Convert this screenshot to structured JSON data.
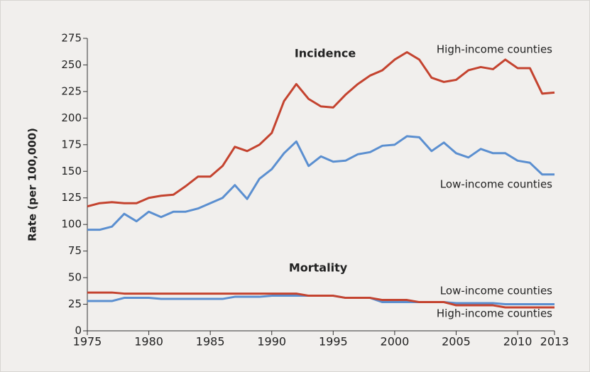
{
  "chart_data": {
    "type": "line",
    "ylabel": "Rate (per 100,000)",
    "x": [
      1975,
      1976,
      1977,
      1978,
      1979,
      1980,
      1981,
      1982,
      1983,
      1984,
      1985,
      1986,
      1987,
      1988,
      1989,
      1990,
      1991,
      1992,
      1993,
      1994,
      1995,
      1996,
      1997,
      1998,
      1999,
      2000,
      2001,
      2002,
      2003,
      2004,
      2005,
      2006,
      2007,
      2008,
      2009,
      2010,
      2011,
      2012,
      2013
    ],
    "xlim": [
      1975,
      2013
    ],
    "xticks": [
      1975,
      1980,
      1985,
      1990,
      1995,
      2000,
      2005,
      2010,
      2013
    ],
    "ylim": [
      0,
      275
    ],
    "yticks": [
      0,
      25,
      50,
      75,
      100,
      125,
      150,
      175,
      200,
      225,
      250,
      275
    ],
    "annotations": [
      "Incidence",
      "Mortality"
    ],
    "series": [
      {
        "name": "High-income counties",
        "color": "#c4432f",
        "values": [
          117,
          120,
          121,
          120,
          120,
          125,
          127,
          128,
          136,
          145,
          145,
          155,
          173,
          169,
          175,
          186,
          216,
          232,
          218,
          211,
          210,
          222,
          232,
          240,
          245,
          255,
          262,
          255,
          238,
          234,
          236,
          245,
          248,
          246,
          255,
          247,
          247,
          223,
          224
        ]
      },
      {
        "name": "Low-income counties",
        "color": "#5b8fd0",
        "values": [
          95,
          95,
          98,
          110,
          103,
          112,
          107,
          112,
          112,
          115,
          120,
          125,
          137,
          124,
          143,
          152,
          167,
          178,
          155,
          164,
          159,
          160,
          166,
          168,
          174,
          175,
          183,
          182,
          169,
          177,
          167,
          163,
          171,
          167,
          167,
          160,
          158,
          147,
          147
        ]
      },
      {
        "name": "Low-income counties",
        "color": "#5b8fd0",
        "values": [
          28,
          28,
          28,
          31,
          31,
          31,
          30,
          30,
          30,
          30,
          30,
          30,
          32,
          32,
          32,
          33,
          33,
          33,
          33,
          33,
          33,
          31,
          31,
          31,
          27,
          27,
          27,
          27,
          27,
          27,
          26,
          26,
          26,
          26,
          25,
          25,
          25,
          25,
          25
        ]
      },
      {
        "name": "High-income counties",
        "color": "#c4432f",
        "values": [
          36,
          36,
          36,
          35,
          35,
          35,
          35,
          35,
          35,
          35,
          35,
          35,
          35,
          35,
          35,
          35,
          35,
          35,
          33,
          33,
          33,
          31,
          31,
          31,
          29,
          29,
          29,
          27,
          27,
          27,
          24,
          24,
          24,
          24,
          22,
          22,
          22,
          22,
          22
        ]
      }
    ]
  }
}
